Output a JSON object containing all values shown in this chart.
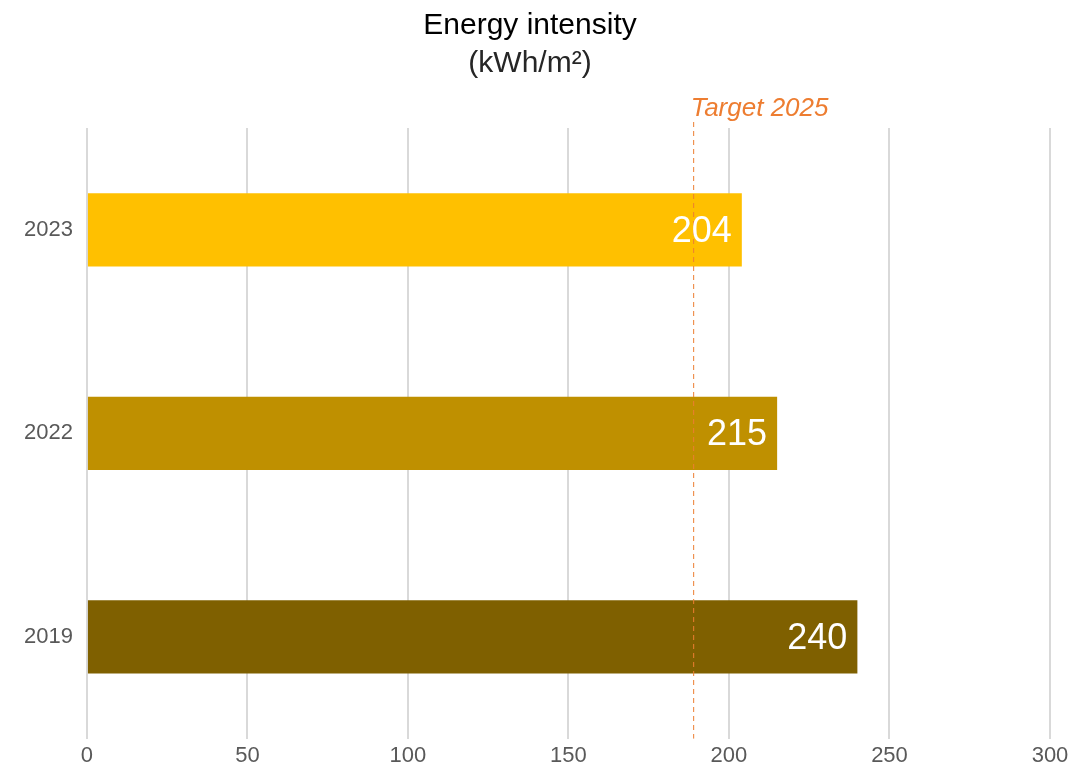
{
  "chart_data": {
    "type": "bar",
    "orientation": "horizontal",
    "title": "Energy intensity",
    "subtitle": "(kWh/m²)",
    "categories": [
      "2023",
      "2022",
      "2019"
    ],
    "values": [
      204,
      215,
      240
    ],
    "colors": [
      "#ffc000",
      "#bf9000",
      "#7f6000"
    ],
    "xlim": [
      0,
      300
    ],
    "xticks": [
      0,
      50,
      100,
      150,
      200,
      250,
      300
    ],
    "grid": "x",
    "data_labels": true,
    "legend": false,
    "ref_lines": [
      {
        "axis": "x",
        "value": 189,
        "label": "Target 2025",
        "color": "#ed7d31",
        "line_style": "dashed"
      }
    ]
  }
}
